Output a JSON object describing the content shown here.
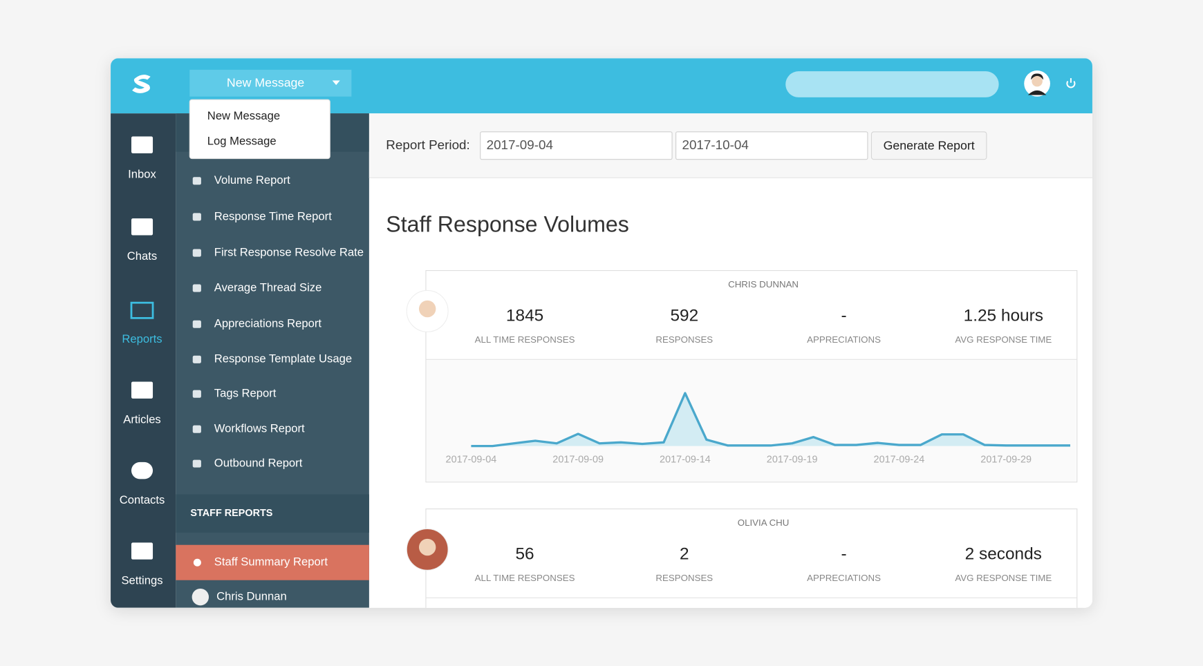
{
  "topbar": {
    "compose": "New Message",
    "compose_menu": [
      "New Message",
      "Log Message"
    ]
  },
  "nav": [
    "Inbox",
    "Chats",
    "Reports",
    "Articles",
    "Contacts",
    "Settings"
  ],
  "reports_menu": [
    "Volume Report",
    "Response Time Report",
    "First Response Resolve Rate",
    "Average Thread Size",
    "Appreciations Report",
    "Response Template Usage",
    "Tags Report",
    "Workflows Report",
    "Outbound Report"
  ],
  "staff_section": {
    "heading": "STAFF REPORTS",
    "items": [
      "Staff Summary Report",
      "Chris Dunnan"
    ]
  },
  "toolbar": {
    "label": "Report Period:",
    "start": "2017-09-04",
    "end": "2017-10-04",
    "button": "Generate Report"
  },
  "title": "Staff Response Volumes",
  "staff": [
    {
      "name": "CHRIS DUNNAN",
      "stats": [
        {
          "value": 1845,
          "label": "ALL TIME RESPONSES"
        },
        {
          "value": 592,
          "label": "RESPONSES"
        },
        {
          "value": "-",
          "label": "APPRECIATIONS"
        },
        {
          "value": "1.25 hours",
          "label": "AVG RESPONSE TIME"
        }
      ],
      "chart_data": {
        "type": "line",
        "color": "#4aa8cc",
        "categories": [
          "2017-09-04",
          null,
          null,
          null,
          null,
          "2017-09-09",
          null,
          null,
          null,
          null,
          "2017-09-14",
          null,
          null,
          null,
          null,
          "2017-09-19",
          null,
          null,
          null,
          null,
          "2017-09-24",
          null,
          null,
          null,
          null,
          "2017-09-29",
          null,
          null,
          null
        ],
        "values": [
          0,
          0,
          5,
          10,
          5,
          23,
          5,
          7,
          4,
          7,
          100,
          12,
          1,
          1,
          1,
          5,
          17,
          2,
          2,
          6,
          2,
          2,
          22,
          22,
          2,
          1,
          1,
          1,
          1
        ]
      }
    },
    {
      "name": "OLIVIA CHU",
      "stats": [
        {
          "value": 56,
          "label": "ALL TIME RESPONSES"
        },
        {
          "value": 2,
          "label": "RESPONSES"
        },
        {
          "value": "-",
          "label": "APPRECIATIONS"
        },
        {
          "value": "2 seconds",
          "label": "AVG RESPONSE TIME"
        }
      ]
    }
  ]
}
